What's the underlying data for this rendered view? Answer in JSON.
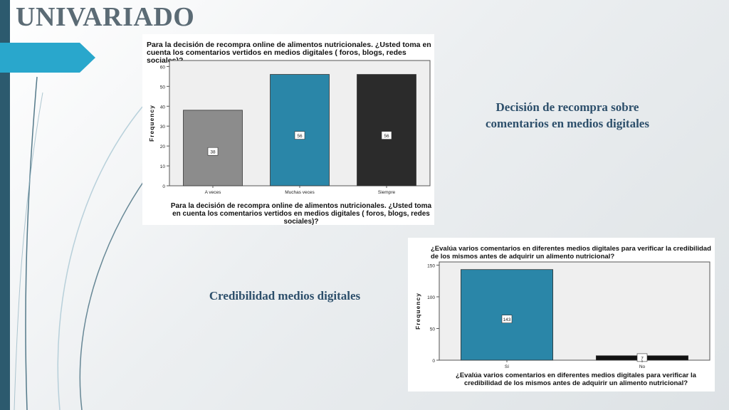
{
  "slide": {
    "title": "UNIVARIADO",
    "caption1": "Decisión de recompra sobre comentarios en medios digitales",
    "caption2": "Credibilidad medios digitales",
    "colors": {
      "accent": "#29a7cc",
      "sidebar": "#2c5a6e",
      "caption": "#2d4f6b"
    }
  },
  "chart_data": [
    {
      "type": "bar",
      "title": "Para la decisión de recompra online de alimentos nutricionales. ¿Usted toma en cuenta los comentarios vertidos en medios digitales ( foros, blogs, redes sociales)?",
      "xlabel": "Para la decisión de recompra online de alimentos nutricionales. ¿Usted toma en cuenta los comentarios vertidos en medios digitales ( foros, blogs, redes sociales)?",
      "ylabel": "Frequency",
      "categories": [
        "A veces",
        "Muchas veces",
        "Siempre"
      ],
      "values": [
        38,
        56,
        56
      ],
      "colors": [
        "#8c8c8c",
        "#2a86a8",
        "#2b2b2b"
      ],
      "yticks": [
        0,
        10,
        20,
        30,
        40,
        50,
        60
      ],
      "ylim": [
        0,
        63
      ],
      "grid": false,
      "data_labels": true
    },
    {
      "type": "bar",
      "title": "¿Evalúa varios comentarios en diferentes medios digitales para verificar la credibilidad de los mismos antes de adquirir un alimento nutricional?",
      "xlabel": "¿Evalúa varios comentarios en diferentes medios digitales para verificar la credibilidad de los mismos antes de adquirir un alimento nutricional?",
      "ylabel": "Frequency",
      "categories": [
        "Sí",
        "No"
      ],
      "values": [
        143,
        7
      ],
      "colors": [
        "#2a86a8",
        "#111111"
      ],
      "yticks": [
        0,
        50,
        100,
        150
      ],
      "ylim": [
        0,
        155
      ],
      "grid": false,
      "data_labels": true
    }
  ]
}
